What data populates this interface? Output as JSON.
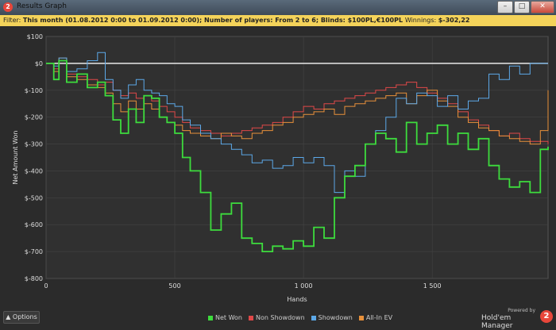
{
  "window": {
    "title": "Results Graph",
    "icon": "2",
    "buttons": [
      "–",
      "□",
      "✕"
    ]
  },
  "filter": {
    "prefix": "Filter: ",
    "text": "This month (01.08.2012 0:00 to 01.09.2012 0:00); Number of players: From 2 to 6; Blinds: $100PL,€100PL ",
    "winnings_label": "Winnings: ",
    "winnings_value": "$-302,22"
  },
  "footer": {
    "options_label": "Options",
    "powered_by": "Powered by",
    "product": "Hold'em Manager",
    "logo": "2"
  },
  "chart_data": {
    "type": "line",
    "xlabel": "Hands",
    "ylabel": "Net Amount Won",
    "xlim": [
      0,
      1950
    ],
    "ylim": [
      -800,
      100
    ],
    "x_ticks": [
      0,
      500,
      1000,
      1500
    ],
    "x_tick_labels": [
      "0",
      "500",
      "1 000",
      "1 500"
    ],
    "y_ticks": [
      100,
      0,
      -100,
      -200,
      -300,
      -400,
      -500,
      -600,
      -700,
      -800
    ],
    "y_tick_labels": [
      "$100",
      "$0",
      "$-100",
      "$-200",
      "$-300",
      "$-400",
      "$-500",
      "$-600",
      "$-700",
      "$-800"
    ],
    "legend_position": "bottom",
    "grid": true,
    "x": [
      0,
      30,
      50,
      80,
      120,
      160,
      200,
      230,
      260,
      290,
      320,
      350,
      380,
      410,
      440,
      470,
      500,
      530,
      560,
      600,
      640,
      680,
      720,
      760,
      800,
      840,
      880,
      920,
      960,
      1000,
      1040,
      1080,
      1120,
      1160,
      1200,
      1240,
      1280,
      1320,
      1360,
      1400,
      1440,
      1480,
      1520,
      1560,
      1600,
      1640,
      1680,
      1720,
      1760,
      1800,
      1840,
      1880,
      1920,
      1950
    ],
    "series": [
      {
        "name": "Net Won",
        "color": "#3ddc3d",
        "values": [
          0,
          -60,
          10,
          -70,
          -40,
          -90,
          -70,
          -120,
          -210,
          -260,
          -170,
          -220,
          -120,
          -130,
          -200,
          -220,
          -260,
          -350,
          -400,
          -480,
          -620,
          -560,
          -520,
          -650,
          -670,
          -700,
          -680,
          -690,
          -660,
          -680,
          -610,
          -650,
          -500,
          -420,
          -380,
          -300,
          -260,
          -280,
          -330,
          -220,
          -300,
          -260,
          -230,
          -300,
          -260,
          -320,
          -280,
          -380,
          -430,
          -460,
          -440,
          -480,
          -320,
          -310
        ]
      },
      {
        "name": "Non Showdown",
        "color": "#e04848",
        "values": [
          0,
          -20,
          10,
          -40,
          -50,
          -60,
          -80,
          -70,
          -100,
          -120,
          -110,
          -130,
          -120,
          -140,
          -160,
          -180,
          -200,
          -220,
          -240,
          -250,
          -260,
          -270,
          -260,
          -250,
          -240,
          -230,
          -220,
          -200,
          -180,
          -160,
          -170,
          -150,
          -140,
          -130,
          -120,
          -110,
          -100,
          -90,
          -80,
          -70,
          -90,
          -110,
          -130,
          -150,
          -180,
          -210,
          -230,
          -250,
          -270,
          -260,
          -280,
          -290,
          -290,
          -300
        ]
      },
      {
        "name": "Showdown",
        "color": "#5ca8e8",
        "values": [
          0,
          -10,
          20,
          -30,
          -20,
          10,
          40,
          -60,
          -100,
          -130,
          -80,
          -60,
          -100,
          -110,
          -120,
          -150,
          -160,
          -210,
          -230,
          -260,
          -280,
          -300,
          -320,
          -340,
          -370,
          -360,
          -390,
          -380,
          -350,
          -370,
          -350,
          -380,
          -480,
          -400,
          -420,
          -300,
          -250,
          -200,
          -130,
          -150,
          -110,
          -120,
          -160,
          -120,
          -170,
          -140,
          -130,
          -40,
          -60,
          -10,
          -40,
          0,
          0,
          0
        ]
      },
      {
        "name": "All-In EV",
        "color": "#e8903a",
        "values": [
          0,
          -30,
          20,
          -50,
          -60,
          -80,
          -90,
          -110,
          -150,
          -180,
          -140,
          -170,
          -150,
          -170,
          -200,
          -220,
          -230,
          -250,
          -260,
          -270,
          -280,
          -260,
          -270,
          -280,
          -260,
          -250,
          -230,
          -220,
          -200,
          -190,
          -180,
          -170,
          -190,
          -160,
          -150,
          -140,
          -130,
          -120,
          -110,
          -150,
          -120,
          -100,
          -140,
          -160,
          -200,
          -220,
          -240,
          -250,
          -270,
          -280,
          -290,
          -300,
          -250,
          -100
        ]
      }
    ]
  }
}
